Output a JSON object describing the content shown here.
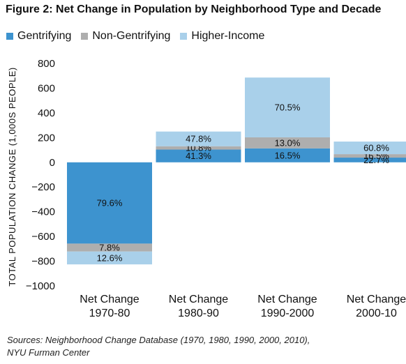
{
  "title": "Figure 2: Net Change in Population by Neighborhood Type and Decade",
  "sources": [
    "Sources: Neighborhood Change Database (1970, 1980, 1990, 2000, 2010),",
    "NYU Furman Center"
  ],
  "colors": {
    "gentrifying": "#3d93cf",
    "non_gentrifying": "#aeaeae",
    "higher_income": "#a9d0ea"
  },
  "legend": [
    {
      "label": "Gentrifying",
      "color": "#3d93cf"
    },
    {
      "label": "Non-Gentrifying",
      "color": "#aeaeae"
    },
    {
      "label": "Higher-Income",
      "color": "#a9d0ea"
    }
  ],
  "chart_data": {
    "type": "bar",
    "stacked": true,
    "title": "Figure 2: Net Change in Population by Neighborhood Type and Decade",
    "ylabel": "TOTAL POPULATION CHANGE (1,000S PEOPLE)",
    "ylim": [
      -1000,
      800
    ],
    "yticks": [
      800,
      600,
      400,
      200,
      0,
      -200,
      -400,
      -600,
      -800,
      -1000
    ],
    "categories": [
      [
        "Net Change",
        "1970-80"
      ],
      [
        "Net Change",
        "1980-90"
      ],
      [
        "Net Change",
        "1990-2000"
      ],
      [
        "Net Change",
        "2000-10"
      ]
    ],
    "series": [
      {
        "name": "Gentrifying",
        "color": "#3d93cf",
        "values": [
          -658,
          103,
          113,
          38
        ],
        "labels": [
          "79.6%",
          "41.3%",
          "16.5%",
          "22.7%"
        ]
      },
      {
        "name": "Non-Gentrifying",
        "color": "#aeaeae",
        "values": [
          -64,
          27,
          89,
          28
        ],
        "labels": [
          "7.8%",
          "10.8%",
          "13.0%",
          "16.5%"
        ]
      },
      {
        "name": "Higher-Income",
        "color": "#a9d0ea",
        "values": [
          -104,
          119,
          484,
          102
        ],
        "labels": [
          "12.6%",
          "47.8%",
          "70.5%",
          "60.8%"
        ]
      }
    ],
    "grid": false,
    "legend_position": "top"
  }
}
